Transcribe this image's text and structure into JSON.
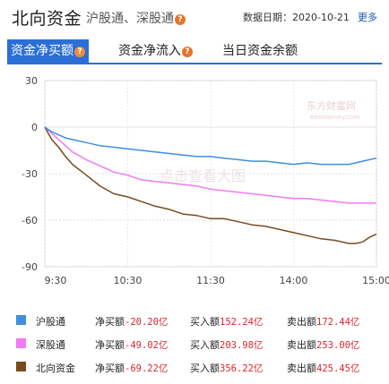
{
  "header": {
    "title": "北向资金",
    "subtitle": "沪股通、深股通",
    "date_label": "数据日期：2020-10-21",
    "more_label": "更多"
  },
  "tabs": [
    {
      "label": "资金净买额",
      "active": true,
      "has_help": true
    },
    {
      "label": "资金净流入",
      "active": false,
      "has_help": true
    },
    {
      "label": "当日资金余额",
      "active": false,
      "has_help": false
    }
  ],
  "help_glyph": "?",
  "watermark": {
    "brand": "东方财富网",
    "domain": "eastmoney.com",
    "hint": "点击查看大图"
  },
  "legend": [
    {
      "name": "沪股通",
      "color": "#3d8fe0",
      "net_label": "净买额",
      "net_value": "-20.20亿",
      "buy_label": "买入额",
      "buy_value": "152.24亿",
      "sell_label": "卖出额",
      "sell_value": "172.44亿"
    },
    {
      "name": "深股通",
      "color": "#f27af2",
      "net_label": "净买额",
      "net_value": "-49.02亿",
      "buy_label": "买入额",
      "buy_value": "203.98亿",
      "sell_label": "卖出额",
      "sell_value": "253.00亿"
    },
    {
      "name": "北向资金",
      "color": "#7a4a1e",
      "net_label": "净买额",
      "net_value": "-69.22亿",
      "buy_label": "买入额",
      "buy_value": "356.22亿",
      "sell_label": "卖出额",
      "sell_value": "425.45亿"
    }
  ],
  "chart_data": {
    "type": "line",
    "title": "",
    "xlabel": "",
    "ylabel": "",
    "ylim": [
      -90,
      30
    ],
    "yticks": [
      30,
      0,
      -30,
      -60,
      -90
    ],
    "xlim_minutes": [
      0,
      240
    ],
    "xticks": [
      {
        "label": "9:30",
        "t": 0
      },
      {
        "label": "10:30",
        "t": 60
      },
      {
        "label": "11:30",
        "t": 120
      },
      {
        "label": "14:00",
        "t": 180
      },
      {
        "label": "15:00",
        "t": 240
      }
    ],
    "x": [
      0,
      5,
      10,
      15,
      20,
      30,
      40,
      50,
      60,
      70,
      80,
      90,
      100,
      110,
      120,
      130,
      140,
      150,
      160,
      170,
      180,
      190,
      200,
      210,
      220,
      225,
      230,
      235,
      240
    ],
    "series": [
      {
        "name": "沪股通",
        "color": "#3d8fe0",
        "values": [
          0,
          -3,
          -5,
          -7,
          -8,
          -10,
          -12,
          -13,
          -14,
          -15,
          -16,
          -17,
          -18,
          -19,
          -19,
          -20,
          -21,
          -22,
          -22,
          -23,
          -24,
          -23,
          -24,
          -24,
          -24,
          -23,
          -22,
          -21,
          -20
        ]
      },
      {
        "name": "深股通",
        "color": "#f27af2",
        "values": [
          0,
          -4,
          -8,
          -12,
          -16,
          -21,
          -25,
          -29,
          -31,
          -34,
          -35,
          -36,
          -37,
          -38,
          -40,
          -41,
          -42,
          -43,
          -44,
          -45,
          -46,
          -46,
          -47,
          -48,
          -49,
          -49,
          -49,
          -49,
          -49
        ]
      },
      {
        "name": "北向资金",
        "color": "#7a4a1e",
        "values": [
          0,
          -8,
          -13,
          -19,
          -24,
          -31,
          -38,
          -43,
          -45,
          -48,
          -51,
          -53,
          -56,
          -57,
          -59,
          -59,
          -61,
          -63,
          -64,
          -66,
          -68,
          -70,
          -72,
          -73,
          -75,
          -75,
          -74,
          -71,
          -69
        ]
      }
    ]
  }
}
